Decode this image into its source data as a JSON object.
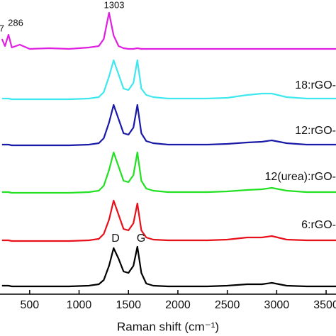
{
  "chart_data": {
    "type": "line",
    "x_label": "Raman shift (cm⁻¹)",
    "x": [
      220,
      250,
      286,
      320,
      400,
      500,
      700,
      900,
      1100,
      1200,
      1250,
      1303,
      1350,
      1400,
      1450,
      1500,
      1550,
      1590,
      1630,
      1680,
      1750,
      1900,
      2100,
      2300,
      2500,
      2700,
      2850,
      2950,
      3100,
      3300,
      3500,
      3600
    ],
    "xlim": [
      200,
      3600
    ],
    "xticks": [
      500,
      1000,
      1500,
      2000,
      2500,
      3000,
      3500
    ],
    "ylim": [
      0,
      415
    ],
    "series": [
      {
        "color": "#000000",
        "values": [
          12,
          12,
          12,
          11,
          11,
          11,
          11,
          11,
          12,
          14,
          20,
          40,
          65,
          50,
          32,
          30,
          40,
          67,
          30,
          15,
          12,
          11,
          11,
          11,
          12,
          14,
          14,
          16,
          12,
          11,
          11,
          11
        ]
      },
      {
        "name": "6:rGO-",
        "color": "#e8101a",
        "values": [
          76,
          76,
          76,
          75,
          75,
          75,
          75,
          75,
          76,
          78,
          85,
          105,
          132,
          112,
          92,
          90,
          100,
          128,
          90,
          80,
          77,
          76,
          76,
          76,
          77,
          80,
          80,
          82,
          77,
          76,
          76,
          76
        ]
      },
      {
        "name": "12(urea):rGO-",
        "color": "#22e022",
        "values": [
          144,
          144,
          144,
          143,
          143,
          143,
          143,
          143,
          144,
          146,
          153,
          175,
          200,
          180,
          160,
          158,
          168,
          200,
          160,
          149,
          146,
          144,
          144,
          144,
          145,
          147,
          148,
          150,
          146,
          144,
          144,
          144
        ]
      },
      {
        "name": "12:rGO-",
        "color": "#1a1aa8",
        "values": [
          211,
          211,
          211,
          210,
          210,
          210,
          210,
          210,
          211,
          213,
          220,
          242,
          267,
          247,
          227,
          225,
          235,
          267,
          227,
          216,
          213,
          211,
          211,
          211,
          212,
          214,
          215,
          217,
          213,
          211,
          211,
          211
        ]
      },
      {
        "name": "18:rGO-",
        "color": "#3ee8ee",
        "values": [
          276,
          276,
          276,
          275,
          275,
          275,
          275,
          275,
          276,
          278,
          285,
          307,
          330,
          310,
          290,
          288,
          298,
          330,
          290,
          281,
          278,
          276,
          276,
          276,
          277,
          281,
          283,
          283,
          278,
          276,
          276,
          276
        ]
      },
      {
        "color": "#e020e0",
        "values": [
          360,
          350,
          366,
          348,
          352,
          346,
          347,
          346,
          348,
          350,
          360,
          397,
          365,
          350,
          347,
          346,
          346,
          347,
          346,
          346,
          346,
          346,
          346,
          346,
          346,
          346,
          346,
          346,
          346,
          346,
          346,
          346
        ]
      }
    ],
    "annotations": [
      "1303",
      "286",
      "7"
    ],
    "peak_labels": [
      "D",
      "G"
    ]
  }
}
